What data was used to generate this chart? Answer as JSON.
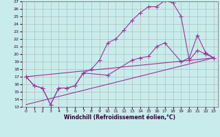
{
  "xlabel": "Windchill (Refroidissement éolien,°C)",
  "bg_color": "#c8ecec",
  "line_color": "#993399",
  "grid_color": "#b0b0b0",
  "xlim": [
    -0.5,
    23.5
  ],
  "ylim": [
    13,
    27
  ],
  "xticks": [
    0,
    1,
    2,
    3,
    4,
    5,
    6,
    7,
    8,
    9,
    10,
    11,
    12,
    13,
    14,
    15,
    16,
    17,
    18,
    19,
    20,
    21,
    22,
    23
  ],
  "yticks": [
    13,
    14,
    15,
    16,
    17,
    18,
    19,
    20,
    21,
    22,
    23,
    24,
    25,
    26,
    27
  ],
  "line1_x": [
    0,
    1,
    2,
    3,
    4,
    5,
    6,
    7,
    8,
    9,
    10,
    11,
    12,
    13,
    14,
    15,
    16,
    17,
    18,
    19,
    20,
    21,
    22,
    23
  ],
  "line1_y": [
    17.0,
    15.8,
    15.5,
    13.3,
    15.5,
    15.5,
    15.8,
    17.5,
    18.0,
    19.2,
    21.5,
    22.0,
    23.2,
    24.5,
    25.5,
    26.3,
    26.3,
    27.1,
    26.8,
    25.0,
    19.2,
    20.5,
    20.0,
    19.5
  ],
  "line2_x": [
    0,
    1,
    2,
    3,
    4,
    5,
    6,
    7,
    10,
    13,
    14,
    15,
    16,
    17,
    19,
    20,
    21,
    22,
    23
  ],
  "line2_y": [
    17.0,
    15.8,
    15.5,
    13.3,
    15.5,
    15.5,
    15.8,
    17.5,
    17.2,
    19.2,
    19.5,
    19.7,
    21.0,
    21.5,
    19.0,
    19.5,
    22.5,
    20.2,
    19.5
  ],
  "line3_x": [
    0,
    23
  ],
  "line3_y": [
    17.0,
    19.5
  ],
  "line4_x": [
    0,
    23
  ],
  "line4_y": [
    13.3,
    19.5
  ]
}
